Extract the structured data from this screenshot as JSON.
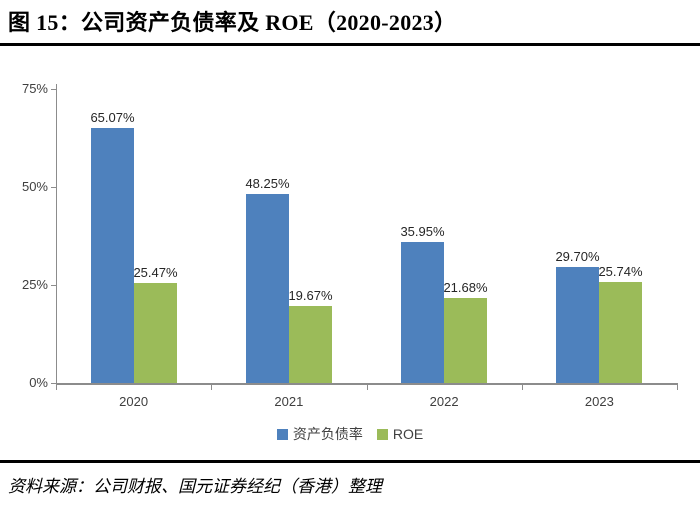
{
  "title": "图 15：公司资产负债率及 ROE（2020-2023）",
  "source_note": "资料来源：公司财报、国元证券经纪（香港）整理",
  "colors": {
    "bar_blue": "#4E81BD",
    "bar_green": "#9BBB59",
    "axis": "#8C8C8C",
    "label_text": "#262626",
    "tick_text": "#3F3F3F"
  },
  "chart_data": {
    "type": "bar",
    "categories": [
      "2020",
      "2021",
      "2022",
      "2023"
    ],
    "series": [
      {
        "key": "debt-asset-ratio",
        "name": "资产负债率",
        "color_key": "bar_blue",
        "values": [
          65.07,
          48.25,
          35.95,
          29.7
        ],
        "labels": [
          "65.07%",
          "48.25%",
          "35.95%",
          "29.70%"
        ]
      },
      {
        "key": "roe",
        "name": "ROE",
        "color_key": "bar_green",
        "values": [
          25.47,
          19.67,
          21.68,
          25.74
        ],
        "labels": [
          "25.47%",
          "19.67%",
          "21.68%",
          "25.74%"
        ]
      }
    ],
    "yticks": [
      "0%",
      "25%",
      "50%",
      "75%"
    ],
    "ylim": [
      0,
      75
    ],
    "xlabel": "",
    "ylabel": "",
    "grid": false,
    "legend_position": "bottom"
  }
}
